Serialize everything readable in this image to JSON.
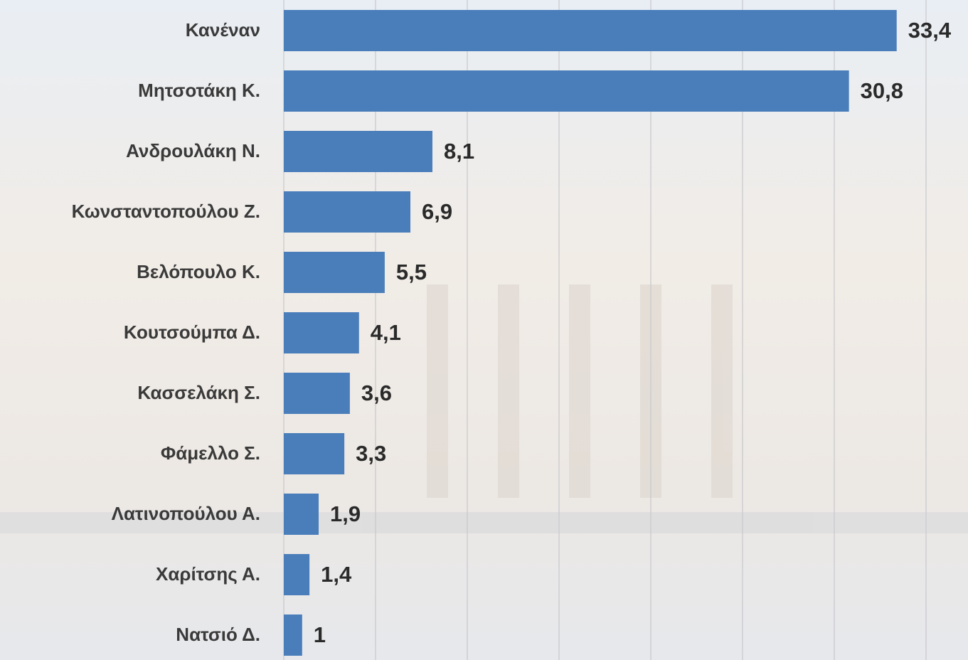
{
  "chart_data": {
    "type": "bar",
    "orientation": "horizontal",
    "categories": [
      "Κανέναν",
      "Μητσοτάκη Κ.",
      "Ανδρουλάκη Ν.",
      "Κωνσταντοπούλου Ζ.",
      "Βελόπουλο Κ.",
      "Κουτσούμπα Δ.",
      "Κασσελάκη Σ.",
      "Φάμελλο Σ.",
      "Λατινοπούλου Α.",
      "Χαρίτσης Α.",
      "Νατσιό Δ."
    ],
    "values": [
      33.4,
      30.8,
      8.1,
      6.9,
      5.5,
      4.1,
      3.6,
      3.3,
      1.9,
      1.4,
      1
    ],
    "value_labels": [
      "33,4",
      "30,8",
      "8,1",
      "6,9",
      "5,5",
      "4,1",
      "3,6",
      "3,3",
      "1,9",
      "1,4",
      "1"
    ],
    "color": "#4a7ebb",
    "xlim": [
      0,
      35
    ],
    "xticks": [
      0,
      5,
      10,
      15,
      20,
      25,
      30,
      35
    ],
    "grid": true
  }
}
